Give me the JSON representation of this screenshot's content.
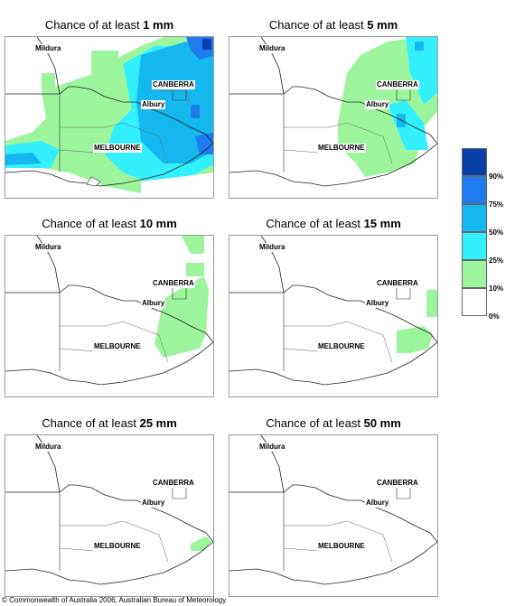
{
  "panels": [
    {
      "prefix": "Chance of at least ",
      "amount": "1 mm"
    },
    {
      "prefix": "Chance of at least ",
      "amount": "5 mm"
    },
    {
      "prefix": "Chance of at least ",
      "amount": "10 mm"
    },
    {
      "prefix": "Chance of at least ",
      "amount": "15 mm"
    },
    {
      "prefix": "Chance of at least ",
      "amount": "25 mm"
    },
    {
      "prefix": "Chance of at least ",
      "amount": "50 mm"
    }
  ],
  "places": {
    "mildura": "Mildura",
    "canberra": "CANBERRA",
    "albury": "Albury",
    "melbourne": "MELBOURNE"
  },
  "legend": {
    "ticks": [
      "90%",
      "75%",
      "50%",
      "25%",
      "10%",
      "0%"
    ],
    "colors": [
      "#0a3fa8",
      "#1e7cf0",
      "#15b8ee",
      "#33f0ff",
      "#9cf59c",
      "#ffffff"
    ]
  },
  "colors": {
    "band_10_25": "#9cf59c",
    "band_25_50": "#33f0ff",
    "band_50_75": "#15b8ee",
    "band_75_90": "#1e7cf0",
    "band_90_plus": "#0a3fa8"
  },
  "copyright": "© Commonwealth of Australia 2006, Australian Bureau of Meteorology"
}
